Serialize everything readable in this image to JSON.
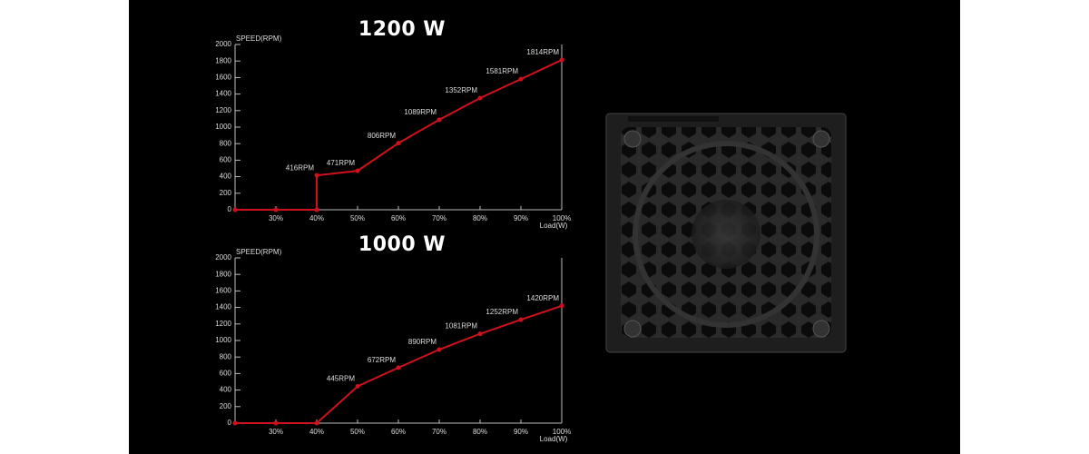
{
  "chart_data": [
    {
      "type": "line",
      "title": "1200 W",
      "y_label": "SPEED(RPM)",
      "x_label": "Load(W)",
      "x": [
        20,
        30,
        40,
        40,
        50,
        60,
        70,
        80,
        90,
        100
      ],
      "values": [
        0,
        0,
        0,
        416,
        471,
        806,
        1089,
        1352,
        1581,
        1814
      ],
      "value_labels": [
        null,
        null,
        null,
        "416RPM",
        "471RPM",
        "806RPM",
        "1089RPM",
        "1352RPM",
        "1581RPM",
        "1814RPM"
      ],
      "color": "#d0101c",
      "xlim": [
        20,
        100
      ],
      "xticks": [
        {
          "value": 30,
          "label": "30%"
        },
        {
          "value": 40,
          "label": "40%"
        },
        {
          "value": 50,
          "label": "50%"
        },
        {
          "value": 60,
          "label": "60%"
        },
        {
          "value": 70,
          "label": "70%"
        },
        {
          "value": 80,
          "label": "80%"
        },
        {
          "value": 90,
          "label": "90%"
        },
        {
          "value": 100,
          "label": "100%"
        }
      ],
      "ylim": [
        0,
        2000
      ],
      "yticks": [
        0,
        200,
        400,
        600,
        800,
        1000,
        1200,
        1400,
        1600,
        1800,
        2000
      ]
    },
    {
      "type": "line",
      "title": "1000 W",
      "y_label": "SPEED(RPM)",
      "x_label": "Load(W)",
      "x": [
        20,
        30,
        40,
        50,
        60,
        70,
        80,
        90,
        100
      ],
      "values": [
        0,
        0,
        0,
        445,
        672,
        890,
        1081,
        1252,
        1420
      ],
      "value_labels": [
        null,
        null,
        null,
        "445RPM",
        "672RPM",
        "890RPM",
        "1081RPM",
        "1252RPM",
        "1420RPM"
      ],
      "color": "#d0101c",
      "xlim": [
        20,
        100
      ],
      "xticks": [
        {
          "value": 30,
          "label": "30%"
        },
        {
          "value": 40,
          "label": "40%"
        },
        {
          "value": 50,
          "label": "50%"
        },
        {
          "value": 60,
          "label": "60%"
        },
        {
          "value": 70,
          "label": "70%"
        },
        {
          "value": 80,
          "label": "80%"
        },
        {
          "value": 90,
          "label": "90%"
        },
        {
          "value": 100,
          "label": "100%"
        }
      ],
      "ylim": [
        0,
        2000
      ],
      "yticks": [
        0,
        200,
        400,
        600,
        800,
        1000,
        1200,
        1400,
        1600,
        1800,
        2000
      ]
    }
  ]
}
